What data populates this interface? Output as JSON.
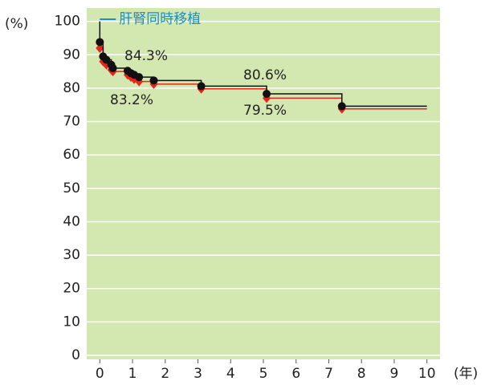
{
  "chart_data": {
    "type": "step",
    "y_label": "(%)",
    "x_label": "(年)",
    "xlim": [
      -0.4,
      10.4
    ],
    "xticks": [
      0,
      1,
      2,
      3,
      4,
      5,
      6,
      7,
      8,
      9,
      10
    ],
    "ylim": [
      -1.2,
      104
    ],
    "yticks": [
      0,
      10,
      20,
      30,
      40,
      50,
      60,
      70,
      80,
      90,
      100
    ],
    "grid": true,
    "series": [
      {
        "name": "肝腎同時移植",
        "color": "#111111",
        "marker": "circle",
        "x": [
          0,
          0.1,
          0.2,
          0.35,
          0.4,
          0.85,
          0.95,
          1.05,
          1.2,
          1.65,
          3.1,
          5.1,
          7.4
        ],
        "values": [
          93.8,
          89.5,
          88.5,
          87,
          86,
          85.2,
          84.5,
          84,
          83.3,
          82.3,
          80.6,
          78.3,
          74.6
        ]
      },
      {
        "color": "#e8241c",
        "marker": "diamond",
        "x": [
          0,
          0.1,
          0.2,
          0.35,
          0.4,
          0.85,
          0.95,
          1.05,
          1.2,
          1.65,
          3.1,
          5.1,
          7.4
        ],
        "values": [
          92,
          88,
          87,
          85.5,
          85,
          84,
          83.3,
          82.7,
          82,
          81.2,
          79.8,
          77,
          73.8
        ]
      }
    ],
    "annotations": [
      "84.3%",
      "83.2%",
      "80.6%",
      "79.5%"
    ]
  }
}
